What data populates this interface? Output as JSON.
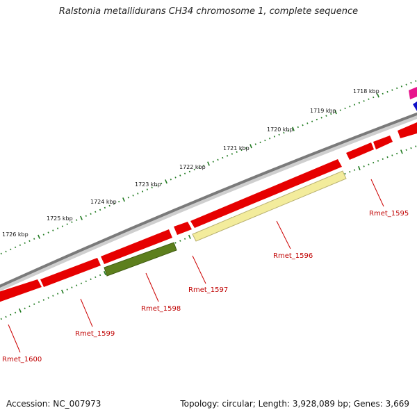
{
  "title": "Ralstonia metallidurans CH34 chromosome 1, complete sequence",
  "footer": {
    "accession": "Accession: NC_007973",
    "info": "Topology: circular; Length: 3,928,089 bp; Genes: 3,669"
  },
  "colors": {
    "backbone": "#7a7a7a",
    "gene_forward": "#e60000",
    "gene_reverse_light": "#f3ec9c",
    "gene_reverse_dark": "#5d7f1d",
    "tick": "#1f7a1f",
    "label_line": "#cc0000",
    "magenta": "#e8148c",
    "blue": "#1010c8"
  },
  "scale": {
    "labels": [
      "1718 kbp",
      "1719 kbp",
      "1720 kbp",
      "1721 kbp",
      "1722 kbp",
      "1723 kbp",
      "1724 kbp",
      "1725 kbp",
      "1726 kbp"
    ]
  },
  "genes": [
    {
      "name": "Rmet_1595",
      "strand": "forward"
    },
    {
      "name": "Rmet_1596",
      "strand": "reverse"
    },
    {
      "name": "Rmet_1597",
      "strand": "forward"
    },
    {
      "name": "Rmet_1598",
      "strand": "reverse"
    },
    {
      "name": "Rmet_1599",
      "strand": "forward"
    },
    {
      "name": "Rmet_1600",
      "strand": "forward"
    }
  ]
}
